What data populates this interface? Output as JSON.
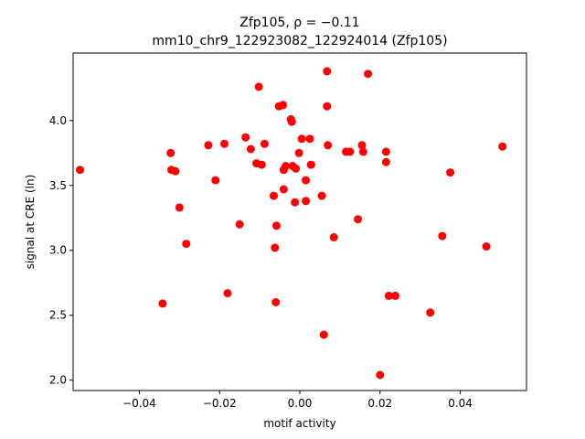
{
  "chart_data": {
    "type": "scatter",
    "title_line1": "Zfp105, ρ = −0.11",
    "title_line2": "mm10_chr9_122923082_122924014 (Zfp105)",
    "xlabel": "motif activity",
    "ylabel": "signal at CRE (ln)",
    "xlim": [
      -0.0565,
      0.0565
    ],
    "ylim": [
      1.92,
      4.52
    ],
    "xticks": [
      -0.04,
      -0.02,
      0.0,
      0.02,
      0.04
    ],
    "xtick_labels": [
      "−0.04",
      "−0.02",
      "0.00",
      "0.02",
      "0.04"
    ],
    "yticks": [
      2.0,
      2.5,
      3.0,
      3.5,
      4.0
    ],
    "ytick_labels": [
      "2.0",
      "2.5",
      "3.0",
      "3.5",
      "4.0"
    ],
    "grid": false,
    "marker_color": "#ff0000",
    "points": [
      [
        -0.0548,
        3.62
      ],
      [
        -0.0342,
        2.59
      ],
      [
        -0.0322,
        3.75
      ],
      [
        -0.032,
        3.62
      ],
      [
        -0.031,
        3.61
      ],
      [
        -0.03,
        3.33
      ],
      [
        -0.0283,
        3.05
      ],
      [
        -0.0228,
        3.81
      ],
      [
        -0.021,
        3.54
      ],
      [
        -0.0188,
        3.82
      ],
      [
        -0.018,
        2.67
      ],
      [
        -0.015,
        3.2
      ],
      [
        -0.0135,
        3.87
      ],
      [
        -0.0122,
        3.78
      ],
      [
        -0.0108,
        3.67
      ],
      [
        -0.0102,
        4.26
      ],
      [
        -0.0095,
        3.66
      ],
      [
        -0.0088,
        3.82
      ],
      [
        -0.0065,
        3.42
      ],
      [
        -0.0062,
        3.02
      ],
      [
        -0.006,
        2.6
      ],
      [
        -0.0058,
        3.19
      ],
      [
        -0.0052,
        4.11
      ],
      [
        -0.0042,
        4.12
      ],
      [
        -0.004,
        3.62
      ],
      [
        -0.004,
        3.47
      ],
      [
        -0.0035,
        3.65
      ],
      [
        -0.0022,
        4.01
      ],
      [
        -0.002,
        3.99
      ],
      [
        -0.0018,
        3.65
      ],
      [
        -0.0012,
        3.37
      ],
      [
        -0.001,
        3.63
      ],
      [
        -0.0002,
        3.75
      ],
      [
        0.0005,
        3.86
      ],
      [
        0.0015,
        3.38
      ],
      [
        0.0015,
        3.54
      ],
      [
        0.0025,
        3.86
      ],
      [
        0.0028,
        3.66
      ],
      [
        0.0055,
        3.42
      ],
      [
        0.006,
        2.35
      ],
      [
        0.0068,
        4.38
      ],
      [
        0.0068,
        4.11
      ],
      [
        0.007,
        3.81
      ],
      [
        0.0085,
        3.1
      ],
      [
        0.0115,
        3.76
      ],
      [
        0.0125,
        3.76
      ],
      [
        0.0145,
        3.24
      ],
      [
        0.0155,
        3.81
      ],
      [
        0.0158,
        3.76
      ],
      [
        0.017,
        4.36
      ],
      [
        0.02,
        2.04
      ],
      [
        0.0215,
        3.76
      ],
      [
        0.0215,
        3.68
      ],
      [
        0.0222,
        2.65
      ],
      [
        0.0238,
        2.65
      ],
      [
        0.0325,
        2.52
      ],
      [
        0.0355,
        3.11
      ],
      [
        0.0375,
        3.6
      ],
      [
        0.0465,
        3.03
      ],
      [
        0.0505,
        3.8
      ]
    ]
  }
}
